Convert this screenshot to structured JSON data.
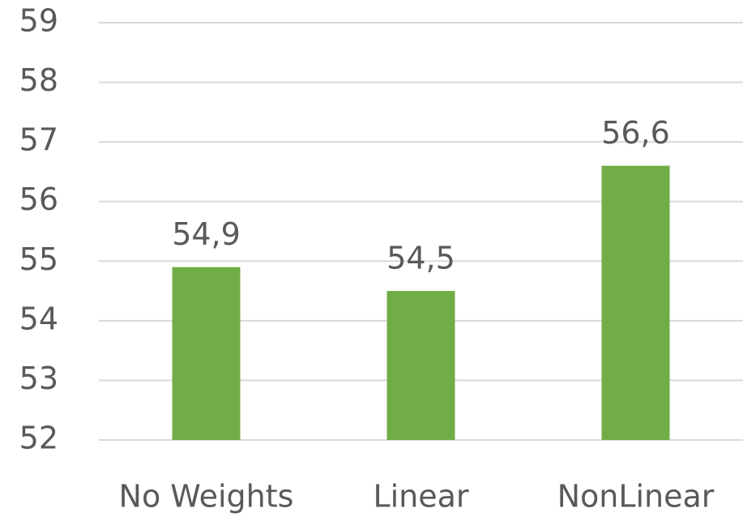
{
  "chart_data": {
    "type": "bar",
    "categories": [
      "No Weights",
      "Linear",
      "NonLinear"
    ],
    "values": [
      54.9,
      54.5,
      56.6
    ],
    "value_labels": [
      "54,9",
      "54,5",
      "56,6"
    ],
    "color": "#70ad47",
    "ylim": [
      52,
      59
    ],
    "yticks": [
      52,
      53,
      54,
      55,
      56,
      57,
      58,
      59
    ],
    "grid": true
  }
}
